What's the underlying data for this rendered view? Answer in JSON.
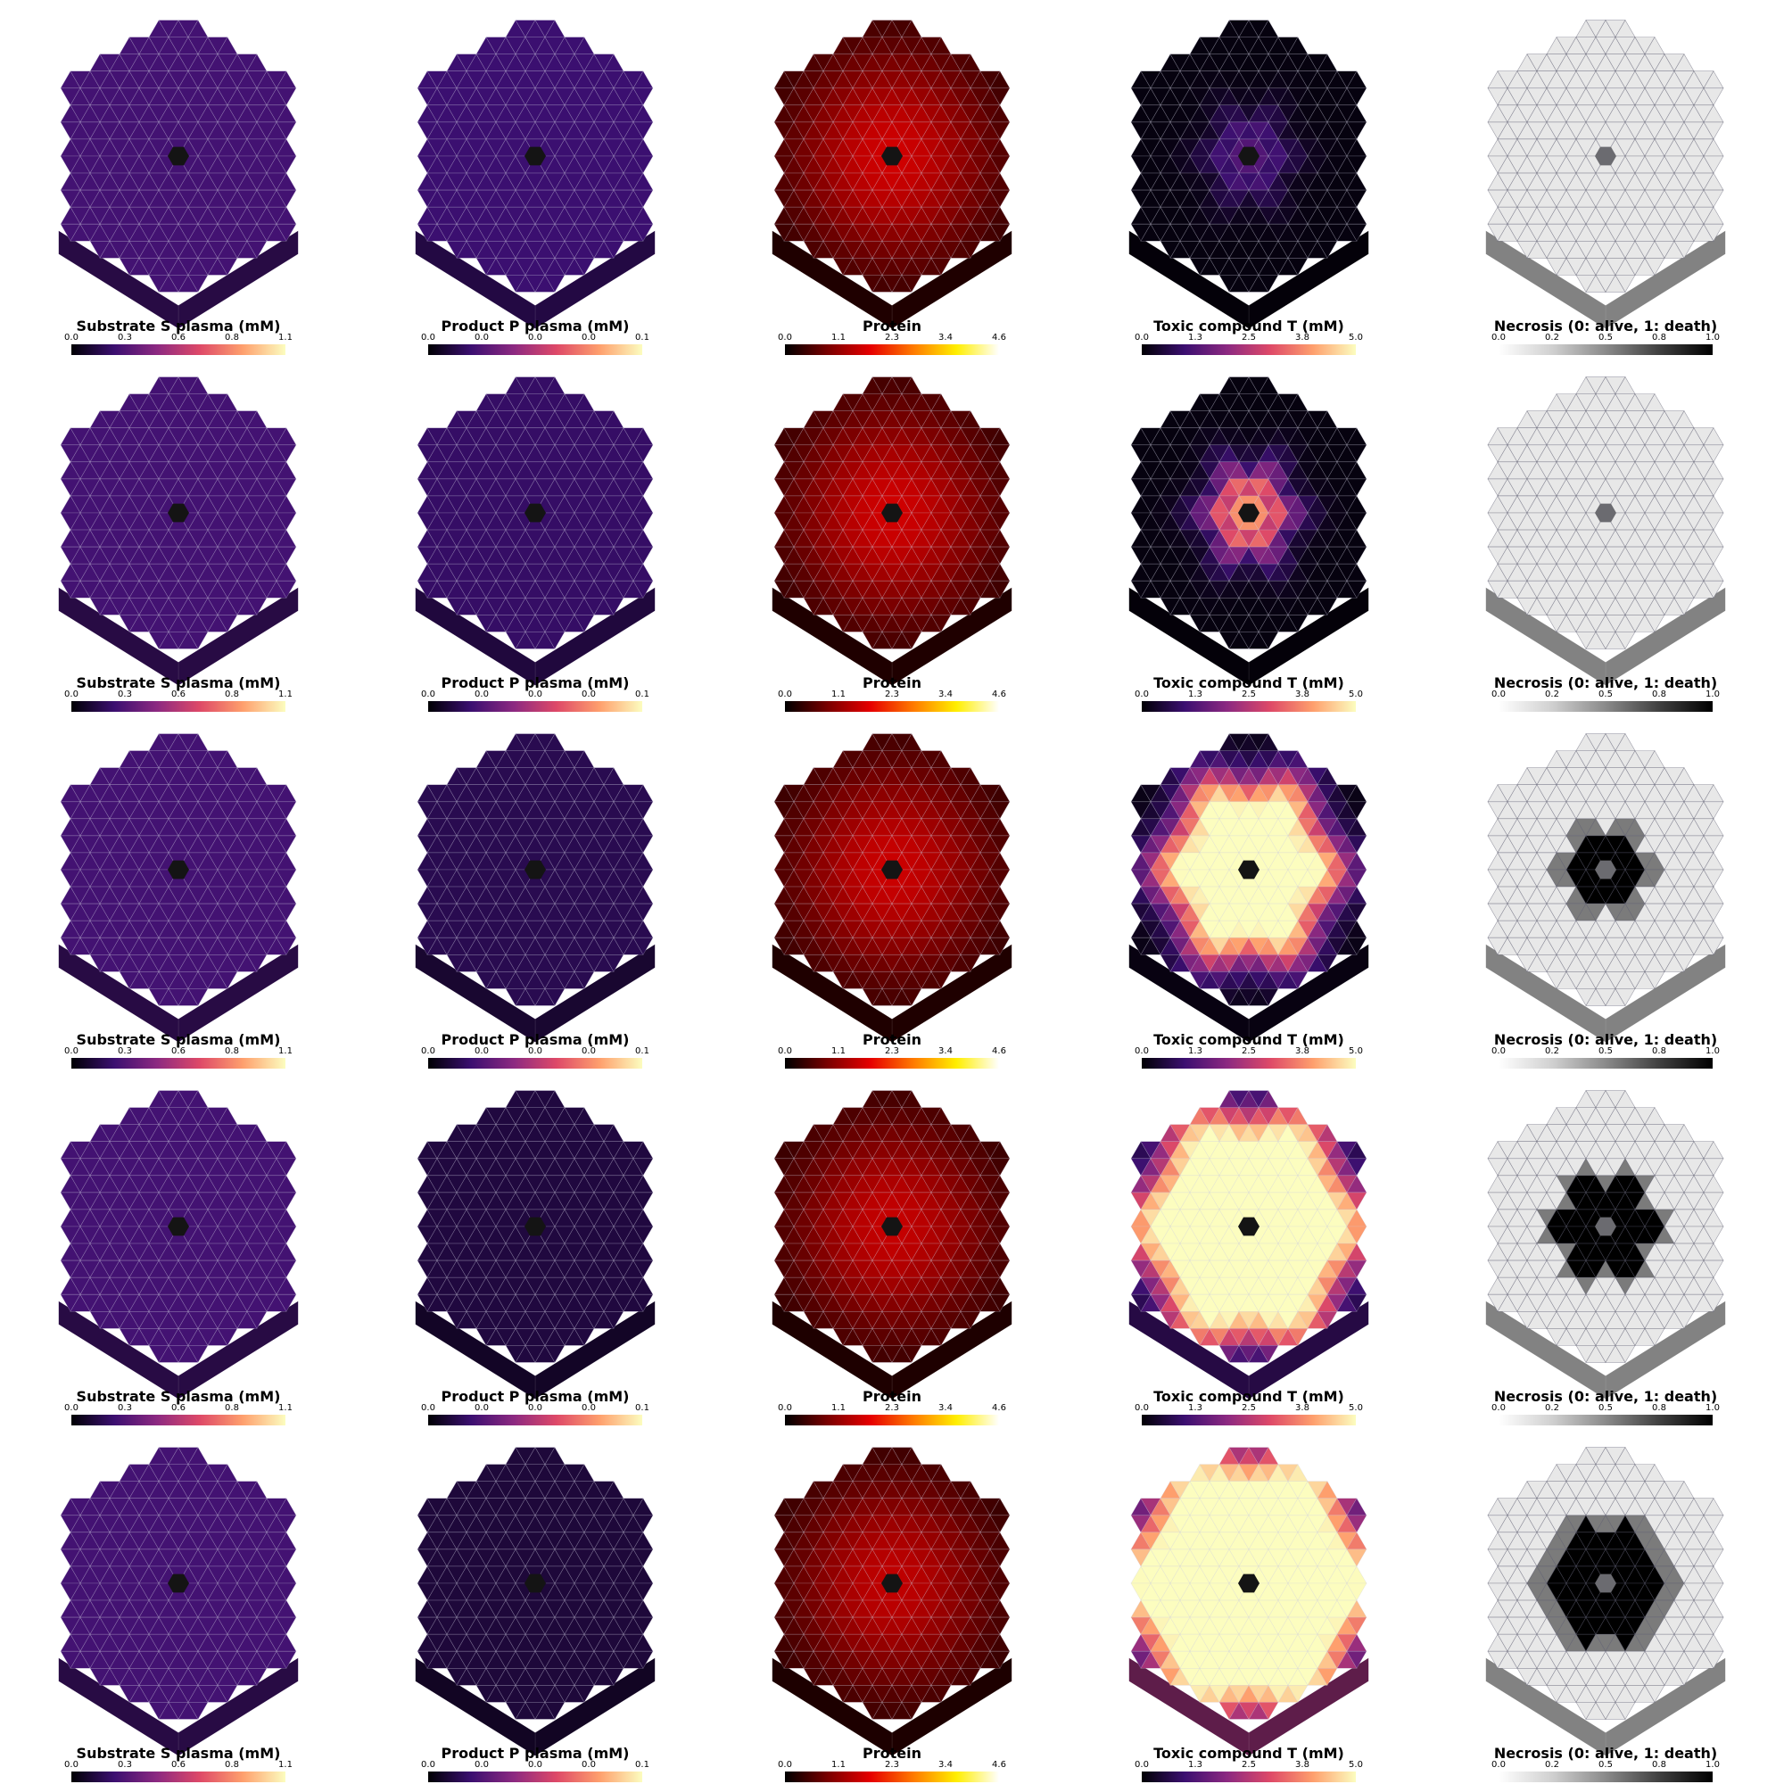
{
  "colormaps": {
    "magma": [
      "#000004",
      "#3b0f70",
      "#8c2981",
      "#de4968",
      "#fe9f6d",
      "#fcfdbf"
    ],
    "hot": [
      "#000000",
      "#7a0000",
      "#e60000",
      "#ff7a00",
      "#ffee00",
      "#ffffff"
    ],
    "grey_r": [
      "#ffffff",
      "#d0d0d0",
      "#8a8a8a",
      "#404040",
      "#000000"
    ]
  },
  "fields": [
    {
      "key": "substrate",
      "title": "Substrate S plasma (mM)",
      "ticks": [
        "0.0",
        "0.3",
        "0.6",
        "0.8",
        "1.1"
      ],
      "colormap": "magma"
    },
    {
      "key": "product",
      "title": "Product P plasma (mM)",
      "ticks": [
        "0.0",
        "0.0",
        "0.0",
        "0.0",
        "0.1"
      ],
      "colormap": "magma"
    },
    {
      "key": "protein",
      "title": "Protein",
      "ticks": [
        "0.0",
        "1.1",
        "2.3",
        "3.4",
        "4.6"
      ],
      "colormap": "hot"
    },
    {
      "key": "toxic",
      "title": "Toxic compound T (mM)",
      "ticks": [
        "0.0",
        "1.3",
        "2.5",
        "3.8",
        "5.0"
      ],
      "colormap": "magma"
    },
    {
      "key": "necrosis",
      "title": "Necrosis (0: alive, 1: death)",
      "ticks": [
        "0.0",
        "0.2",
        "0.5",
        "0.8",
        "1.0"
      ],
      "colormap": "grey_r"
    }
  ],
  "rows": [
    {
      "substrate": 0.22,
      "product": 0.2,
      "protein_center": 0.33,
      "toxic_core": 0.0,
      "toxic_center": 0.3,
      "necrosis_radius": 0.0
    },
    {
      "substrate": 0.22,
      "product": 0.18,
      "protein_center": 0.33,
      "toxic_core": 0.0,
      "toxic_center": 0.95,
      "necrosis_radius": 0.0
    },
    {
      "substrate": 0.22,
      "product": 0.14,
      "protein_center": 0.32,
      "toxic_core": 0.4,
      "toxic_center": 1.0,
      "necrosis_radius": 0.28
    },
    {
      "substrate": 0.22,
      "product": 0.11,
      "protein_center": 0.31,
      "toxic_core": 0.58,
      "toxic_center": 1.0,
      "necrosis_radius": 0.38
    },
    {
      "substrate": 0.22,
      "product": 0.1,
      "protein_center": 0.3,
      "toxic_core": 0.68,
      "toxic_center": 1.0,
      "necrosis_radius": 0.44
    }
  ]
}
